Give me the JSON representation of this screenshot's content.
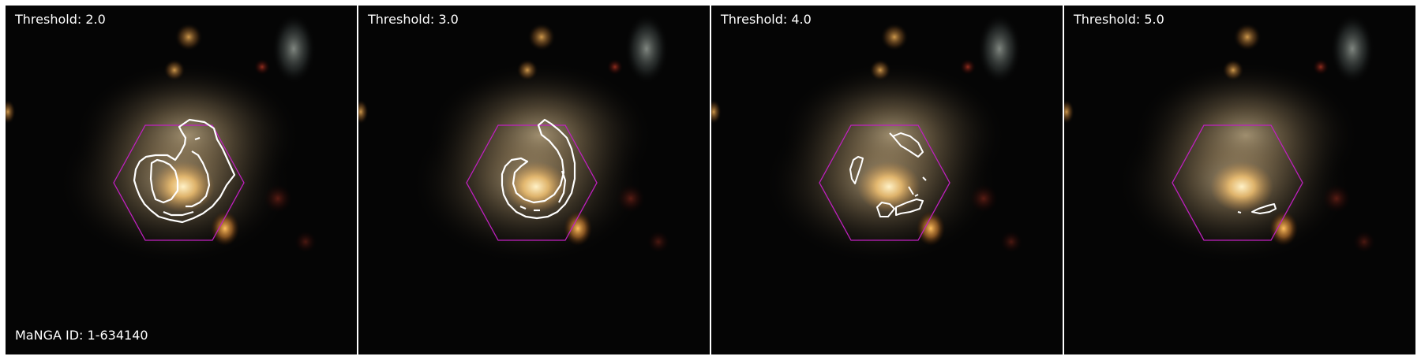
{
  "panels": [
    {
      "threshold_label": "Threshold: 2.0"
    },
    {
      "threshold_label": "Threshold: 3.0"
    },
    {
      "threshold_label": "Threshold: 4.0"
    },
    {
      "threshold_label": "Threshold: 5.0"
    }
  ],
  "manga_id_label": "MaNGA ID: 1-634140",
  "colors": {
    "ifu_hexagon": "#c020c0",
    "contour": "#ffffff",
    "background": "#050505"
  }
}
